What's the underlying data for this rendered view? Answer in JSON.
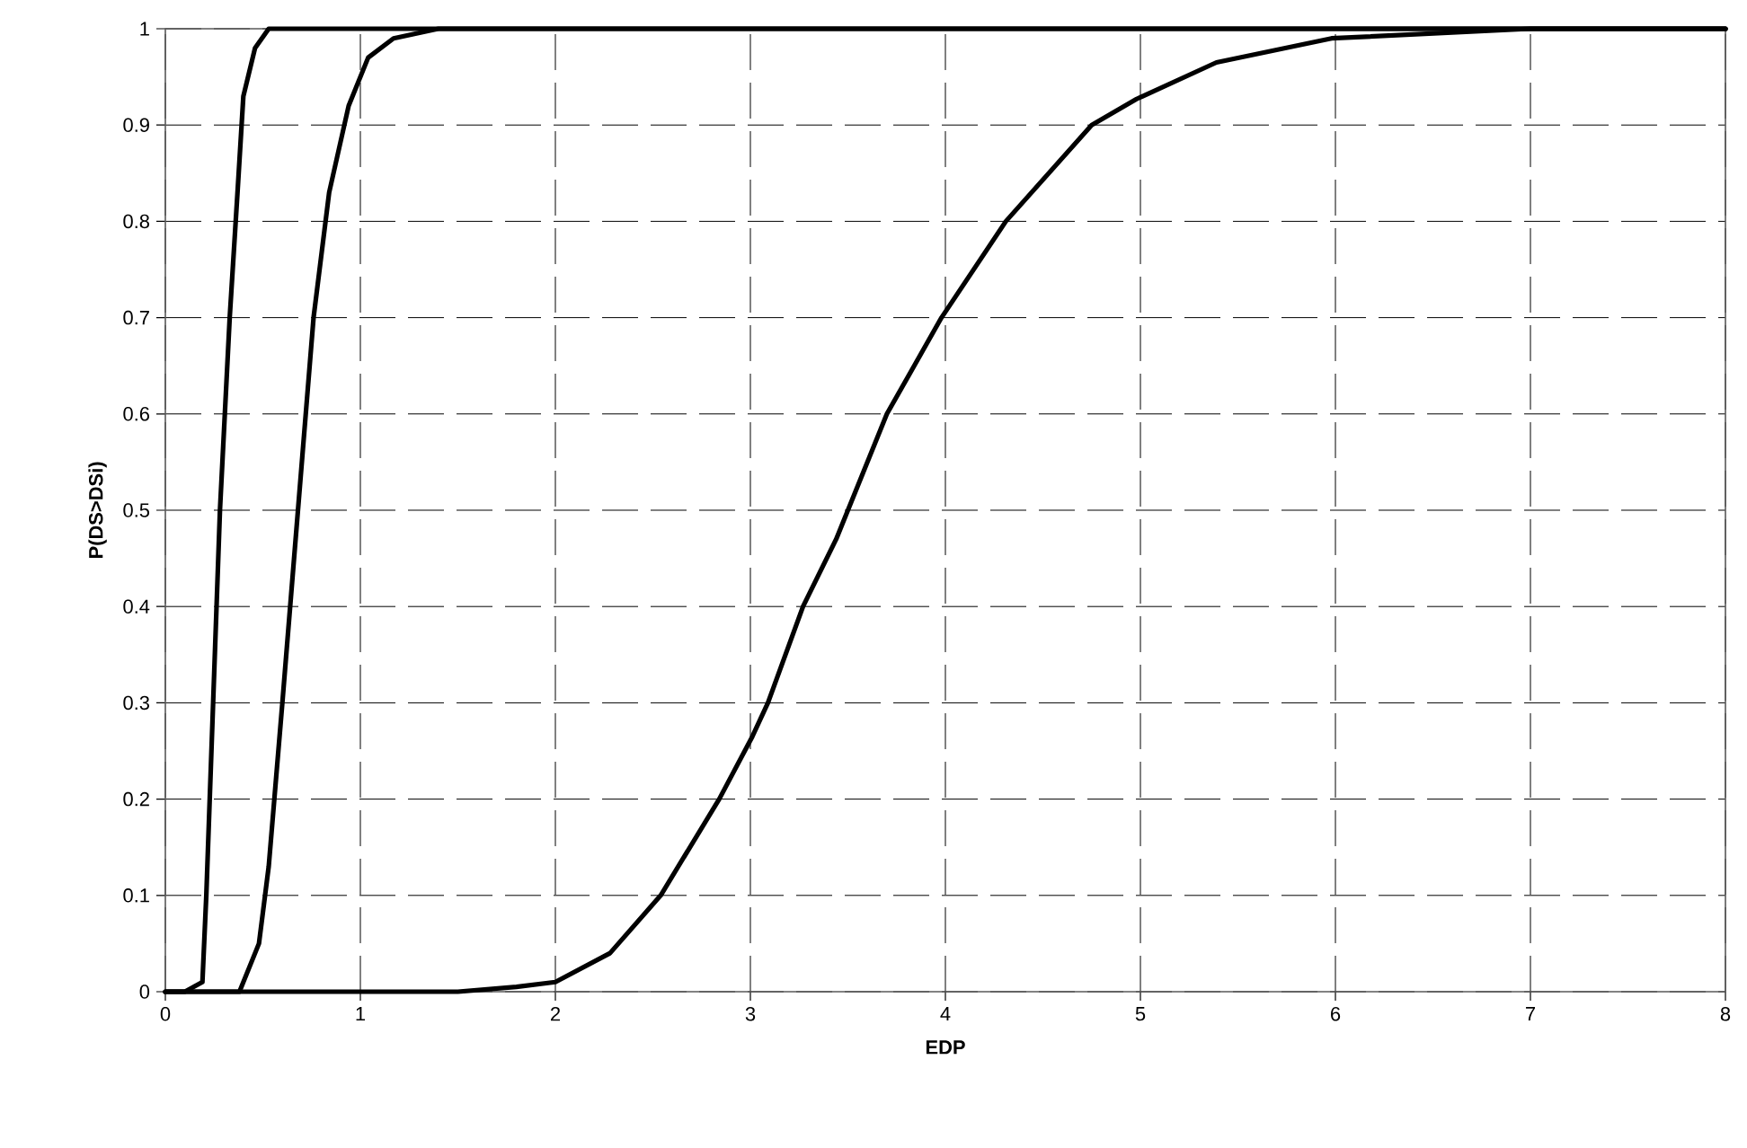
{
  "chart_data": {
    "type": "line",
    "xlabel": "EDP",
    "ylabel": "P(DS>DSi)",
    "xlim": [
      0,
      8
    ],
    "ylim": [
      0,
      1
    ],
    "xticks": [
      0,
      1,
      2,
      3,
      4,
      5,
      6,
      7,
      8
    ],
    "yticks": [
      0,
      0.1,
      0.2,
      0.3,
      0.4,
      0.5,
      0.6,
      0.7,
      0.8,
      0.9,
      1
    ],
    "grid": true,
    "marker": "none",
    "line_style": "solid",
    "series": [
      {
        "color": "#000000",
        "x": [
          0,
          0.1,
          0.19,
          0.21,
          0.245,
          0.28,
          0.33,
          0.37,
          0.4,
          0.46,
          0.53,
          8
        ],
        "values": [
          0,
          0,
          0.01,
          0.1,
          0.3,
          0.5,
          0.7,
          0.83,
          0.93,
          0.98,
          1,
          1
        ]
      },
      {
        "color": "#000000",
        "x": [
          0,
          0.38,
          0.48,
          0.53,
          0.6,
          0.68,
          0.76,
          0.84,
          0.94,
          1.04,
          1.17,
          1.4,
          8
        ],
        "values": [
          0,
          0,
          0.05,
          0.13,
          0.3,
          0.5,
          0.7,
          0.83,
          0.92,
          0.97,
          0.99,
          1,
          1
        ]
      },
      {
        "color": "#000000",
        "x": [
          0,
          1.5,
          1.8,
          2,
          2.28,
          2.54,
          2.84,
          3.01,
          3.09,
          3.27,
          3.44,
          3.7,
          3.98,
          4.31,
          4.75,
          4.98,
          5.39,
          5.98,
          7,
          8
        ],
        "values": [
          0,
          0,
          0.005,
          0.01,
          0.04,
          0.1,
          0.2,
          0.265,
          0.3,
          0.4,
          0.47,
          0.6,
          0.7,
          0.8,
          0.9,
          0.927,
          0.965,
          0.99,
          1,
          1
        ]
      }
    ]
  }
}
